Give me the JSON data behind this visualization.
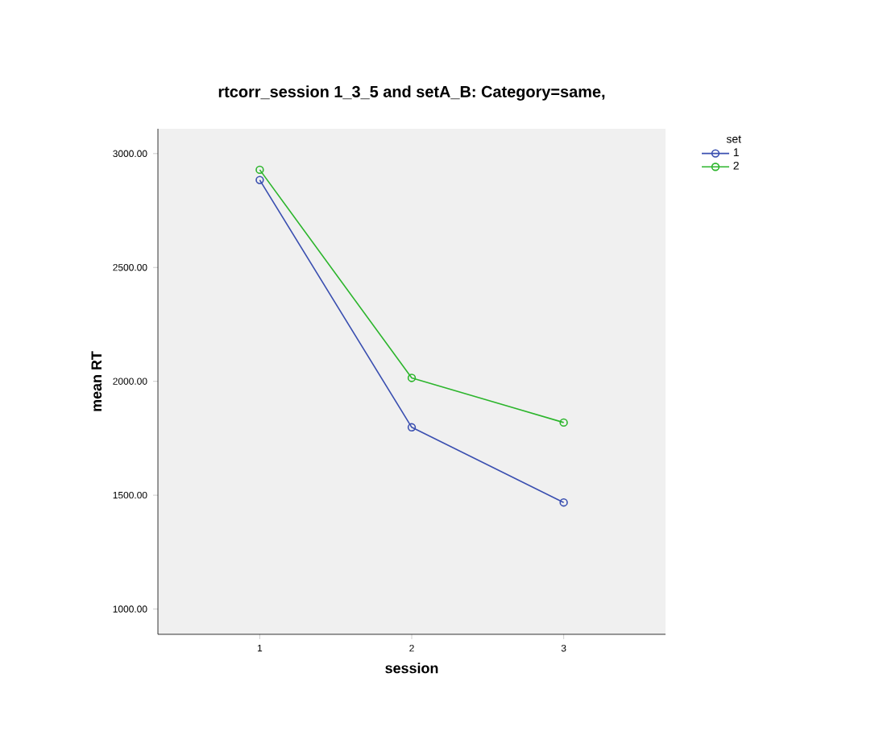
{
  "chart_data": {
    "type": "line",
    "title": "rtcorr_session 1_3_5 and setA_B: Category=same,",
    "xlabel": "session",
    "ylabel": "mean RT",
    "legend_title": "set",
    "categories": [
      "1",
      "2",
      "3"
    ],
    "series": [
      {
        "name": "1",
        "color": "#3a4fb0",
        "values": [
          2884,
          1798,
          1468
        ]
      },
      {
        "name": "2",
        "color": "#2cb52c",
        "values": [
          2929,
          2015,
          1819
        ]
      }
    ],
    "ylim": [
      889,
      3109
    ],
    "yticks": [
      {
        "value": 1000,
        "label": "1000.00"
      },
      {
        "value": 1500,
        "label": "1500.00"
      },
      {
        "value": 2000,
        "label": "2000.00"
      },
      {
        "value": 2500,
        "label": "2500.00"
      },
      {
        "value": 3000,
        "label": "3000.00"
      }
    ],
    "marker": "circle",
    "line_style": "solid",
    "legend": "top right",
    "grid": false
  }
}
